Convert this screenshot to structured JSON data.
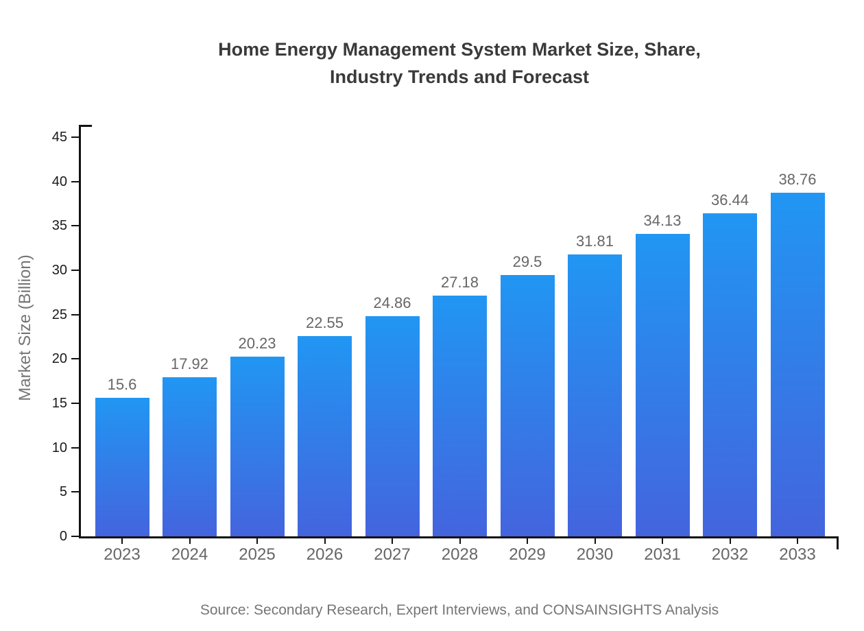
{
  "chart_data": {
    "type": "bar",
    "title_lines": [
      "Home Energy Management System Market Size, Share,",
      "Industry Trends and Forecast"
    ],
    "categories": [
      "2023",
      "2024",
      "2025",
      "2026",
      "2027",
      "2028",
      "2029",
      "2030",
      "2031",
      "2032",
      "2033"
    ],
    "values": [
      15.6,
      17.92,
      20.23,
      22.55,
      24.86,
      27.18,
      29.5,
      31.81,
      34.13,
      36.44,
      38.76
    ],
    "value_labels": [
      "15.6",
      "17.92",
      "20.23",
      "22.55",
      "24.86",
      "27.18",
      "29.5",
      "31.81",
      "34.13",
      "36.44",
      "38.76"
    ],
    "xlabel": "",
    "ylabel": "Market Size (Billion)",
    "ylim": [
      0,
      45
    ],
    "yticks": [
      0,
      5,
      10,
      15,
      20,
      25,
      30,
      35,
      40,
      45
    ],
    "grid": false,
    "legend_position": "none",
    "series_name": "Market Size (Billion)",
    "source_note": "Source: Secondary Research, Expert Interviews, and CONSAINSIGHTS Analysis",
    "colors": {
      "bar_gradient_top": "#2196f3",
      "bar_gradient_bottom": "#4464de",
      "axis": "#111111",
      "y_tick_label": "#1a1a1a",
      "x_tick_label": "#666666",
      "value_label": "#666666",
      "title": "#3a3a3a",
      "axis_title": "#757575",
      "source": "#757575",
      "background": "#ffffff"
    }
  }
}
